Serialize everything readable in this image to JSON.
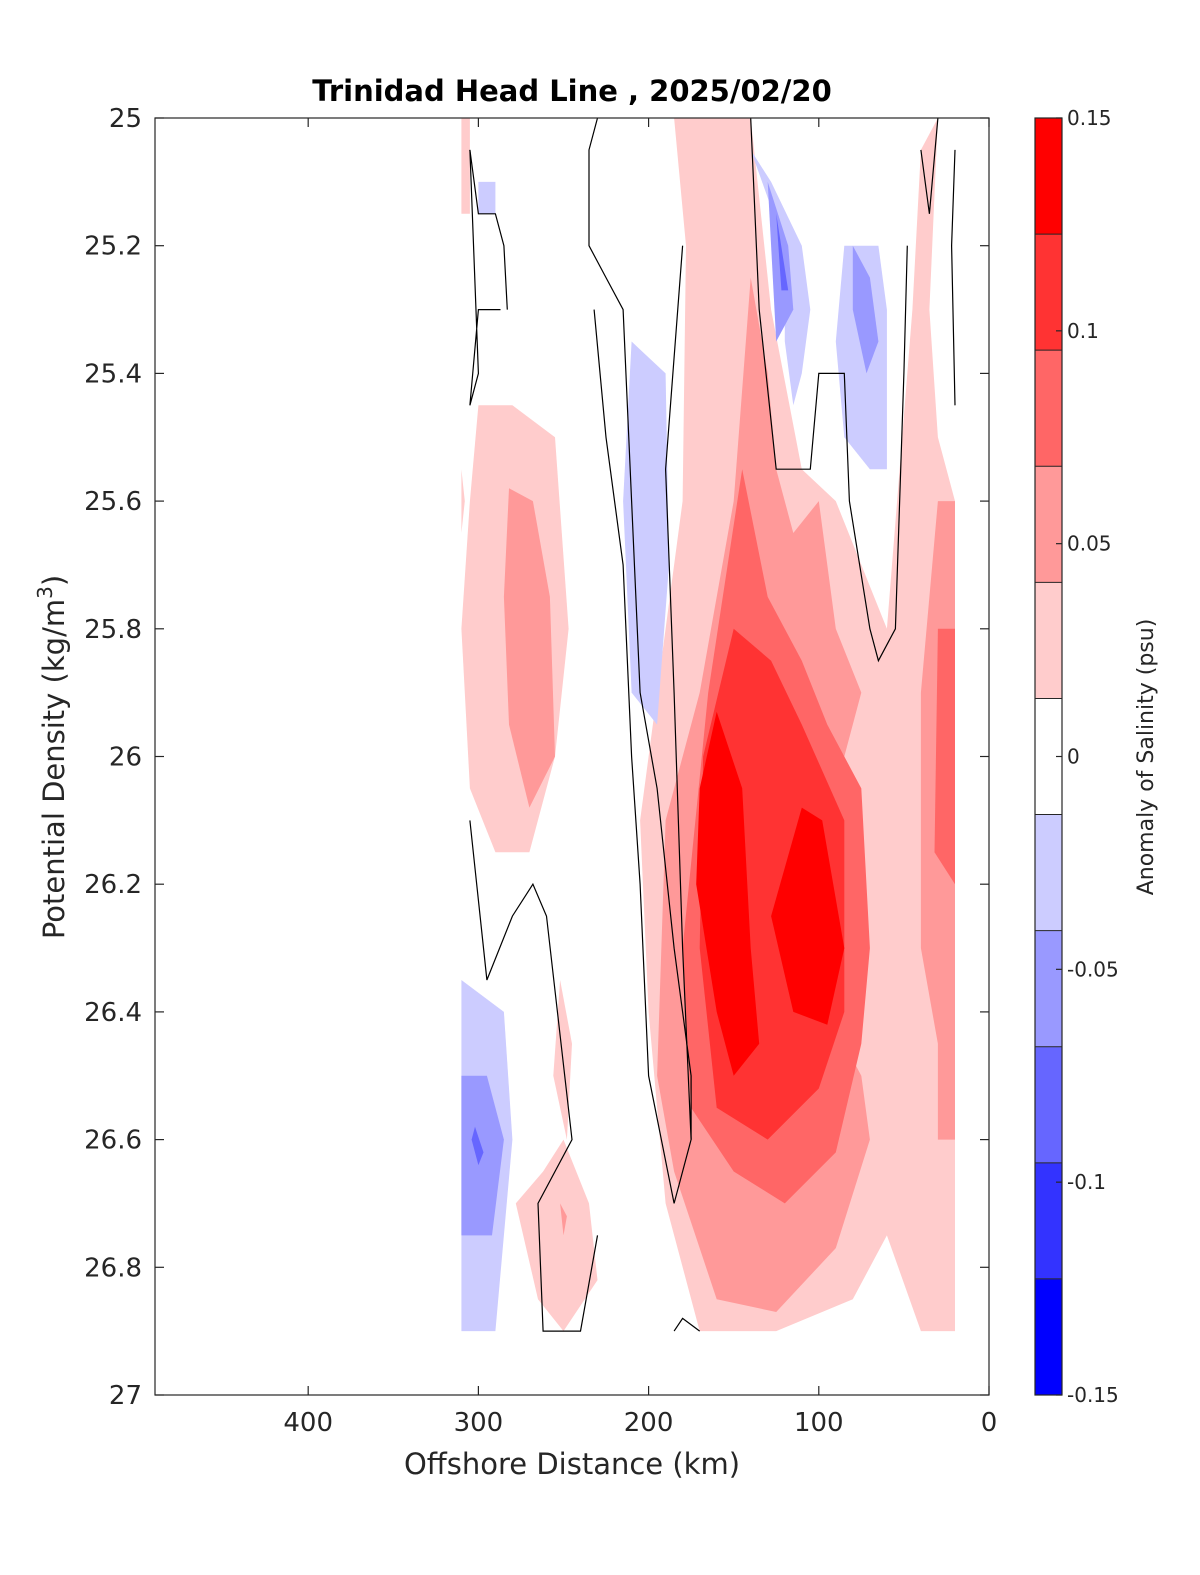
{
  "chart_data": {
    "type": "heatmap",
    "subtype": "filled-contour",
    "title": "Trinidad Head Line , 2025/02/20",
    "xlabel": "Offshore Distance (km)",
    "ylabel_main": "Potential Density (kg/m",
    "ylabel_sup": "3",
    "ylabel_close": ")",
    "x_reversed": true,
    "y_reversed": true,
    "xlim": [
      490,
      0
    ],
    "ylim": [
      25,
      27
    ],
    "xticks": [
      {
        "value": 400,
        "label": "400"
      },
      {
        "value": 300,
        "label": "300"
      },
      {
        "value": 200,
        "label": "200"
      },
      {
        "value": 100,
        "label": "100"
      },
      {
        "value": 0,
        "label": "0"
      }
    ],
    "yticks": [
      {
        "value": 25,
        "label": "25"
      },
      {
        "value": 25.2,
        "label": "25.2"
      },
      {
        "value": 25.4,
        "label": "25.4"
      },
      {
        "value": 25.6,
        "label": "25.6"
      },
      {
        "value": 25.8,
        "label": "25.8"
      },
      {
        "value": 26,
        "label": "26"
      },
      {
        "value": 26.2,
        "label": "26.2"
      },
      {
        "value": 26.4,
        "label": "26.4"
      },
      {
        "value": 26.6,
        "label": "26.6"
      },
      {
        "value": 26.8,
        "label": "26.8"
      },
      {
        "value": 27,
        "label": "27"
      }
    ],
    "data_extent": {
      "x": [
        20,
        310
      ],
      "y": [
        25,
        26.9
      ]
    },
    "colorbar": {
      "label": "Anomaly of Salinity (psu)",
      "range": [
        -0.15,
        0.15
      ],
      "colors": [
        "#0000ff",
        "#3333ff",
        "#6666ff",
        "#9999ff",
        "#ccccff",
        "#ffffff",
        "#ffcccc",
        "#ff9999",
        "#ff6666",
        "#ff3333",
        "#ff0000"
      ],
      "ticks": [
        {
          "value": 0.15,
          "label": "0.15"
        },
        {
          "value": 0.1,
          "label": "0.1"
        },
        {
          "value": 0.05,
          "label": "0.05"
        },
        {
          "value": 0,
          "label": "0"
        },
        {
          "value": -0.05,
          "label": "-0.05"
        },
        {
          "value": -0.1,
          "label": "-0.1"
        },
        {
          "value": -0.15,
          "label": "-0.15"
        }
      ]
    },
    "contour_regions": [
      {
        "level": 0.0375,
        "points": [
          [
            185,
            25.0
          ],
          [
            140,
            25.0
          ],
          [
            128,
            25.3
          ],
          [
            110,
            25.55
          ],
          [
            90,
            25.6
          ],
          [
            60,
            25.8
          ],
          [
            45,
            25.3
          ],
          [
            40,
            25.05
          ],
          [
            30,
            25.0
          ],
          [
            35,
            25.3
          ],
          [
            30,
            25.5
          ],
          [
            20,
            25.6
          ],
          [
            20,
            26.9
          ],
          [
            40,
            26.9
          ],
          [
            60,
            26.75
          ],
          [
            80,
            26.85
          ],
          [
            125,
            26.9
          ],
          [
            170,
            26.9
          ],
          [
            190,
            26.7
          ],
          [
            200,
            26.4
          ],
          [
            205,
            26.1
          ],
          [
            195,
            25.9
          ],
          [
            180,
            25.6
          ],
          [
            178,
            25.2
          ]
        ]
      },
      {
        "level": 0.0625,
        "points": [
          [
            140,
            25.25
          ],
          [
            150,
            25.6
          ],
          [
            170,
            25.9
          ],
          [
            190,
            26.1
          ],
          [
            195,
            26.5
          ],
          [
            185,
            26.65
          ],
          [
            160,
            26.85
          ],
          [
            125,
            26.87
          ],
          [
            90,
            26.77
          ],
          [
            70,
            26.6
          ],
          [
            75,
            26.5
          ],
          [
            95,
            26.4
          ],
          [
            100,
            26.15
          ],
          [
            75,
            25.9
          ],
          [
            90,
            25.8
          ],
          [
            100,
            25.6
          ],
          [
            115,
            25.65
          ],
          [
            125,
            25.55
          ],
          [
            130,
            25.4
          ]
        ]
      },
      {
        "level": 0.0625,
        "points": [
          [
            20,
            25.6
          ],
          [
            30,
            25.6
          ],
          [
            40,
            25.9
          ],
          [
            40,
            26.3
          ],
          [
            30,
            26.45
          ],
          [
            30,
            26.6
          ],
          [
            20,
            26.6
          ]
        ]
      },
      {
        "level": 0.0875,
        "points": [
          [
            145,
            25.55
          ],
          [
            165,
            25.9
          ],
          [
            180,
            26.3
          ],
          [
            175,
            26.55
          ],
          [
            150,
            26.65
          ],
          [
            120,
            26.7
          ],
          [
            90,
            26.62
          ],
          [
            75,
            26.45
          ],
          [
            70,
            26.3
          ],
          [
            75,
            26.05
          ],
          [
            95,
            25.95
          ],
          [
            110,
            25.85
          ],
          [
            130,
            25.75
          ]
        ]
      },
      {
        "level": 0.0875,
        "points": [
          [
            20,
            25.8
          ],
          [
            30,
            25.8
          ],
          [
            32,
            26.15
          ],
          [
            20,
            26.2
          ]
        ]
      },
      {
        "level": 0.1125,
        "points": [
          [
            150,
            25.8
          ],
          [
            168,
            26.0
          ],
          [
            170,
            26.3
          ],
          [
            160,
            26.55
          ],
          [
            130,
            26.6
          ],
          [
            100,
            26.52
          ],
          [
            85,
            26.4
          ],
          [
            85,
            26.1
          ],
          [
            110,
            25.95
          ],
          [
            128,
            25.85
          ]
        ]
      },
      {
        "level": 0.1375,
        "points": [
          [
            160,
            25.93
          ],
          [
            145,
            26.05
          ],
          [
            140,
            26.3
          ],
          [
            135,
            26.45
          ],
          [
            150,
            26.5
          ],
          [
            160,
            26.4
          ],
          [
            172,
            26.2
          ],
          [
            170,
            26.05
          ]
        ]
      },
      {
        "level": 0.1375,
        "points": [
          [
            110,
            26.08
          ],
          [
            98,
            26.1
          ],
          [
            85,
            26.3
          ],
          [
            95,
            26.42
          ],
          [
            115,
            26.4
          ],
          [
            128,
            26.25
          ]
        ]
      },
      {
        "level": 0.0375,
        "points": [
          [
            300,
            25.45
          ],
          [
            280,
            25.45
          ],
          [
            255,
            25.5
          ],
          [
            247,
            25.8
          ],
          [
            255,
            26.0
          ],
          [
            270,
            26.15
          ],
          [
            290,
            26.15
          ],
          [
            305,
            26.05
          ],
          [
            310,
            25.8
          ],
          [
            305,
            25.6
          ]
        ]
      },
      {
        "level": 0.0625,
        "points": [
          [
            282,
            25.58
          ],
          [
            268,
            25.6
          ],
          [
            258,
            25.75
          ],
          [
            255,
            26.0
          ],
          [
            270,
            26.08
          ],
          [
            282,
            25.95
          ],
          [
            285,
            25.75
          ]
        ]
      },
      {
        "level": 0.0375,
        "points": [
          [
            310,
            25.0
          ],
          [
            305,
            25.0
          ],
          [
            305,
            25.15
          ],
          [
            310,
            25.15
          ]
        ]
      },
      {
        "level": 0.0375,
        "points": [
          [
            310,
            25.55
          ],
          [
            308,
            25.6
          ],
          [
            310,
            25.65
          ]
        ]
      },
      {
        "level": 0.0375,
        "points": [
          [
            252,
            26.35
          ],
          [
            245,
            26.45
          ],
          [
            248,
            26.6
          ],
          [
            256,
            26.5
          ]
        ]
      },
      {
        "level": 0.0375,
        "points": [
          [
            262,
            26.65
          ],
          [
            250,
            26.6
          ],
          [
            235,
            26.7
          ],
          [
            230,
            26.82
          ],
          [
            250,
            26.9
          ],
          [
            265,
            26.85
          ],
          [
            278,
            26.7
          ]
        ]
      },
      {
        "level": 0.0625,
        "points": [
          [
            252,
            26.7
          ],
          [
            248,
            26.72
          ],
          [
            250,
            26.75
          ]
        ]
      },
      {
        "level": -0.0375,
        "points": [
          [
            300,
            25.1
          ],
          [
            290,
            25.1
          ],
          [
            290,
            25.15
          ],
          [
            300,
            25.15
          ]
        ]
      },
      {
        "level": -0.0375,
        "points": [
          [
            210,
            25.35
          ],
          [
            190,
            25.4
          ],
          [
            188,
            25.7
          ],
          [
            195,
            25.95
          ],
          [
            210,
            25.9
          ],
          [
            215,
            25.6
          ]
        ]
      },
      {
        "level": -0.0375,
        "points": [
          [
            140,
            25.05
          ],
          [
            120,
            25.2
          ],
          [
            120,
            25.35
          ],
          [
            115,
            25.45
          ],
          [
            110,
            25.4
          ],
          [
            105,
            25.3
          ],
          [
            110,
            25.2
          ],
          [
            128,
            25.1
          ]
        ]
      },
      {
        "level": -0.0375,
        "points": [
          [
            85,
            25.2
          ],
          [
            65,
            25.2
          ],
          [
            60,
            25.3
          ],
          [
            60,
            25.55
          ],
          [
            70,
            25.55
          ],
          [
            85,
            25.5
          ],
          [
            90,
            25.35
          ]
        ]
      },
      {
        "level": -0.0375,
        "points": [
          [
            310,
            26.35
          ],
          [
            285,
            26.4
          ],
          [
            280,
            26.6
          ],
          [
            285,
            26.75
          ],
          [
            290,
            26.9
          ],
          [
            310,
            26.9
          ]
        ]
      },
      {
        "level": -0.0625,
        "points": [
          [
            130,
            25.1
          ],
          [
            118,
            25.2
          ],
          [
            115,
            25.3
          ],
          [
            125,
            25.35
          ]
        ]
      },
      {
        "level": -0.0625,
        "points": [
          [
            80,
            25.2
          ],
          [
            70,
            25.25
          ],
          [
            65,
            25.35
          ],
          [
            72,
            25.4
          ],
          [
            80,
            25.3
          ]
        ]
      },
      {
        "level": -0.0625,
        "points": [
          [
            310,
            26.5
          ],
          [
            295,
            26.5
          ],
          [
            285,
            26.6
          ],
          [
            292,
            26.75
          ],
          [
            310,
            26.75
          ]
        ]
      },
      {
        "level": -0.0875,
        "points": [
          [
            125,
            25.15
          ],
          [
            118,
            25.27
          ],
          [
            122,
            25.27
          ]
        ]
      },
      {
        "level": -0.0875,
        "points": [
          [
            302,
            26.58
          ],
          [
            297,
            26.62
          ],
          [
            300,
            26.64
          ],
          [
            304,
            26.6
          ]
        ]
      }
    ],
    "zero_contours": [
      [
        [
          305,
          25.05
        ],
        [
          300,
          25.4
        ],
        [
          305,
          25.45
        ],
        [
          300,
          25.3
        ],
        [
          287,
          25.3
        ]
      ],
      [
        [
          305,
          25.05
        ],
        [
          300,
          25.15
        ],
        [
          290,
          25.15
        ],
        [
          285,
          25.2
        ],
        [
          283,
          25.3
        ]
      ],
      [
        [
          230,
          25.0
        ],
        [
          235,
          25.05
        ],
        [
          235,
          25.2
        ],
        [
          225,
          25.25
        ],
        [
          215,
          25.3
        ],
        [
          210,
          25.6
        ],
        [
          205,
          25.9
        ],
        [
          195,
          26.05
        ],
        [
          185,
          26.3
        ],
        [
          175,
          26.5
        ],
        [
          175,
          26.6
        ],
        [
          185,
          26.7
        ],
        [
          200,
          26.5
        ],
        [
          205,
          26.2
        ],
        [
          210,
          26.0
        ],
        [
          215,
          25.7
        ],
        [
          225,
          25.5
        ],
        [
          232,
          25.3
        ]
      ],
      [
        [
          180,
          25.2
        ],
        [
          190,
          25.55
        ],
        [
          185,
          25.9
        ],
        [
          180,
          26.3
        ],
        [
          175,
          26.6
        ]
      ],
      [
        [
          305,
          26.1
        ],
        [
          295,
          26.35
        ],
        [
          280,
          26.25
        ],
        [
          268,
          26.2
        ],
        [
          260,
          26.25
        ],
        [
          245,
          26.6
        ],
        [
          265,
          26.7
        ],
        [
          262,
          26.9
        ],
        [
          240,
          26.9
        ],
        [
          230,
          26.75
        ]
      ],
      [
        [
          170,
          26.9
        ],
        [
          180,
          26.88
        ],
        [
          185,
          26.9
        ]
      ],
      [
        [
          140,
          25.0
        ],
        [
          135,
          25.3
        ],
        [
          125,
          25.55
        ],
        [
          105,
          25.55
        ],
        [
          100,
          25.4
        ],
        [
          85,
          25.4
        ],
        [
          82,
          25.6
        ],
        [
          70,
          25.8
        ],
        [
          65,
          25.85
        ],
        [
          55,
          25.8
        ],
        [
          50,
          25.4
        ],
        [
          48,
          25.2
        ]
      ],
      [
        [
          40,
          25.05
        ],
        [
          35,
          25.15
        ],
        [
          30,
          25.0
        ]
      ],
      [
        [
          20,
          25.05
        ],
        [
          22,
          25.2
        ],
        [
          20,
          25.45
        ]
      ]
    ]
  }
}
